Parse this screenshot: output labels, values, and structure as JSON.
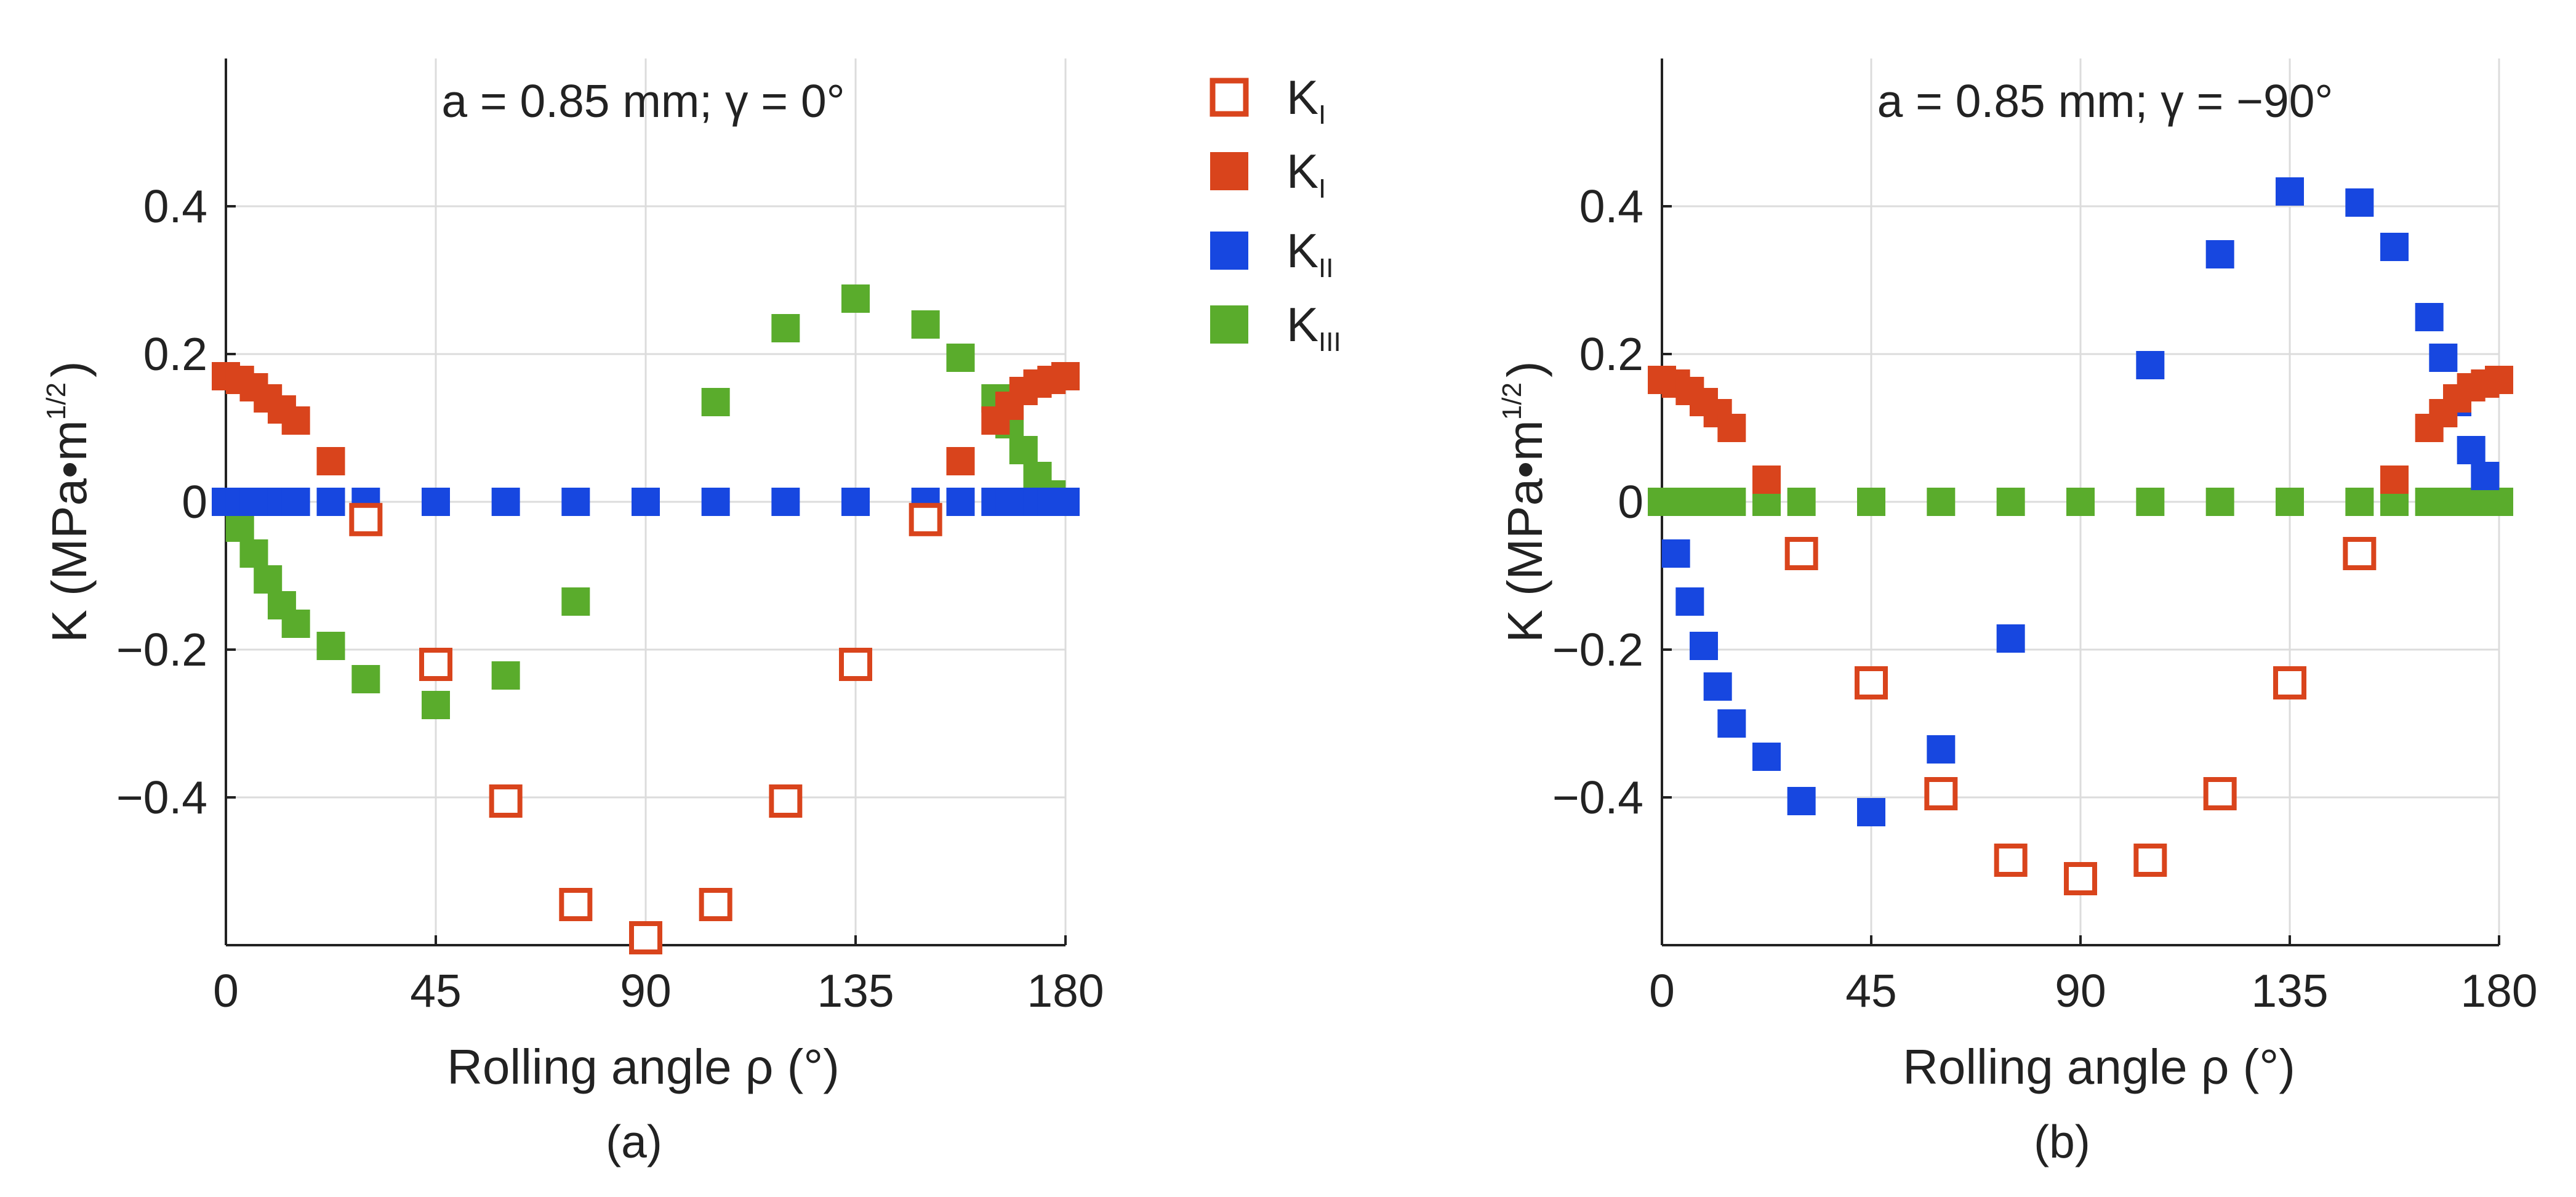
{
  "chart_data": [
    {
      "type": "scatter",
      "panel_label": "(a)",
      "title": "a = 0.85 mm; γ  = 0°",
      "xlabel": "Rolling angle ρ  (°)",
      "ylabel": "K (MPa•m",
      "ylabel_exp": "1/2",
      "ylabel_close": ")",
      "xlim": [
        0,
        180
      ],
      "ylim": [
        -0.6,
        0.6
      ],
      "grid": true,
      "xticks": [
        0,
        45,
        90,
        135,
        180
      ],
      "xtick_labels": [
        "0",
        "45",
        "90",
        "135",
        "180"
      ],
      "yticks": [
        -0.4,
        -0.2,
        0,
        0.2,
        0.4
      ],
      "ytick_labels": [
        "−0.4",
        "−0.2",
        "0",
        "0.2",
        "0.4"
      ],
      "series": [
        {
          "name": "K_I (open)",
          "marker": "open-square",
          "color": "#d9441c",
          "x": [
            30,
            45,
            60,
            75,
            90,
            105,
            120,
            135,
            150
          ],
          "y": [
            -0.024,
            -0.22,
            -0.405,
            -0.545,
            -0.59,
            -0.545,
            -0.405,
            -0.22,
            -0.024
          ]
        },
        {
          "name": "K_I (filled)",
          "marker": "filled-square",
          "color": "#d9441c",
          "x": [
            0,
            3,
            6,
            9,
            12,
            15,
            22.5,
            157.5,
            165,
            168,
            171,
            174,
            177,
            180
          ],
          "y": [
            0.17,
            0.165,
            0.155,
            0.14,
            0.125,
            0.11,
            0.055,
            0.055,
            0.11,
            0.13,
            0.15,
            0.16,
            0.165,
            0.17
          ]
        },
        {
          "name": "K_II",
          "marker": "filled-square",
          "color": "#1747e0",
          "x": [
            0,
            3,
            6,
            9,
            12,
            15,
            22.5,
            30,
            45,
            60,
            75,
            90,
            105,
            120,
            135,
            150,
            157.5,
            165,
            168,
            171,
            174,
            177,
            180
          ],
          "y": [
            0,
            0,
            0,
            0,
            0,
            0,
            0,
            0,
            0,
            0,
            0,
            0,
            0,
            0,
            0,
            0,
            0,
            0,
            0,
            0,
            0,
            0,
            0
          ]
        },
        {
          "name": "K_III",
          "marker": "filled-square",
          "color": "#5aac2c",
          "x": [
            0,
            3,
            6,
            9,
            12,
            15,
            22.5,
            30,
            45,
            60,
            75,
            90,
            105,
            120,
            135,
            150,
            157.5,
            165,
            168,
            171,
            174,
            177,
            180
          ],
          "y": [
            0,
            -0.035,
            -0.07,
            -0.105,
            -0.14,
            -0.165,
            -0.195,
            -0.24,
            -0.275,
            -0.235,
            -0.135,
            0,
            0.135,
            0.235,
            0.275,
            0.24,
            0.195,
            0.14,
            0.105,
            0.07,
            0.035,
            0.01,
            0
          ]
        }
      ]
    },
    {
      "type": "scatter",
      "panel_label": "(b)",
      "title": "a = 0.85 mm; γ  = −90°",
      "xlabel": "Rolling angle ρ  (°)",
      "ylabel": "K (MPa•m",
      "ylabel_exp": "1/2",
      "ylabel_close": ")",
      "xlim": [
        0,
        180
      ],
      "ylim": [
        -0.6,
        0.6
      ],
      "grid": true,
      "xticks": [
        0,
        45,
        90,
        135,
        180
      ],
      "xtick_labels": [
        "0",
        "45",
        "90",
        "135",
        "180"
      ],
      "yticks": [
        -0.4,
        -0.2,
        0,
        0.2,
        0.4
      ],
      "ytick_labels": [
        "−0.4",
        "−0.2",
        "0",
        "0.2",
        "0.4"
      ],
      "series": [
        {
          "name": "K_I (open)",
          "marker": "open-square",
          "color": "#d9441c",
          "x": [
            30,
            45,
            60,
            75,
            90,
            105,
            120,
            135,
            150
          ],
          "y": [
            -0.07,
            -0.245,
            -0.395,
            -0.485,
            -0.51,
            -0.485,
            -0.395,
            -0.245,
            -0.07
          ]
        },
        {
          "name": "K_I (filled)",
          "marker": "filled-square",
          "color": "#d9441c",
          "x": [
            0,
            3,
            6,
            9,
            12,
            15,
            22.5,
            157.5,
            165,
            168,
            171,
            174,
            177,
            180
          ],
          "y": [
            0.165,
            0.16,
            0.15,
            0.135,
            0.12,
            0.1,
            0.03,
            0.03,
            0.1,
            0.12,
            0.14,
            0.155,
            0.16,
            0.165
          ]
        },
        {
          "name": "K_II",
          "marker": "filled-square",
          "color": "#1747e0",
          "x": [
            3,
            6,
            9,
            12,
            15,
            22.5,
            30,
            45,
            60,
            75,
            105,
            120,
            135,
            150,
            157.5,
            165,
            168,
            171,
            174,
            177
          ],
          "y": [
            -0.07,
            -0.135,
            -0.195,
            -0.25,
            -0.3,
            -0.345,
            -0.405,
            -0.42,
            -0.335,
            -0.185,
            0.185,
            0.335,
            0.42,
            0.405,
            0.345,
            0.25,
            0.195,
            0.135,
            0.07,
            0.035
          ]
        },
        {
          "name": "K_III",
          "marker": "filled-square",
          "color": "#5aac2c",
          "x": [
            0,
            3,
            6,
            9,
            12,
            15,
            22.5,
            30,
            45,
            60,
            75,
            90,
            105,
            120,
            135,
            150,
            157.5,
            165,
            168,
            171,
            174,
            177,
            180
          ],
          "y": [
            0,
            0,
            0,
            0,
            0,
            0,
            0,
            0,
            0,
            0,
            0,
            0,
            0,
            0,
            0,
            0,
            0,
            0,
            0,
            0,
            0,
            0,
            0
          ]
        }
      ]
    }
  ],
  "legend": {
    "placement": "between panels, top",
    "entries": [
      {
        "label": "K",
        "sub": "I",
        "marker": "open-square",
        "color": "#d9441c"
      },
      {
        "label": "K",
        "sub": "I",
        "marker": "filled-square",
        "color": "#d9441c"
      },
      {
        "label": "K",
        "sub": "II",
        "marker": "filled-square",
        "color": "#1747e0"
      },
      {
        "label": "K",
        "sub": "III",
        "marker": "filled-square",
        "color": "#5aac2c"
      }
    ]
  },
  "colors": {
    "axis": "#222222",
    "grid": "#dcdcdc",
    "background": "#ffffff"
  }
}
